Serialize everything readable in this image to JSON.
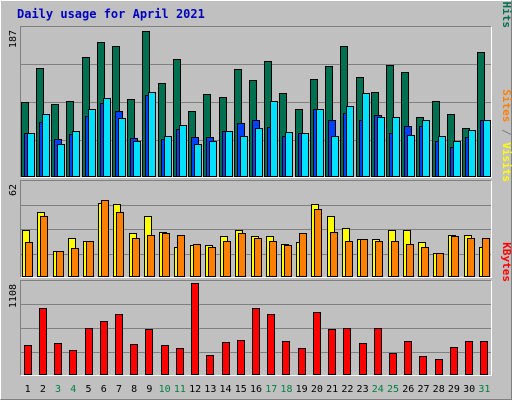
{
  "chart_data": {
    "type": "bar",
    "title": "Daily usage for April 2021",
    "colors": {
      "background": "#c0c0c0",
      "title": "#0000c0",
      "grid": "#808080",
      "hits": "#007050",
      "files": "#0040ff",
      "pages": "#00e0ff",
      "visits": "#ffff00",
      "sites": "#ff8000",
      "kbytes": "#ff0000",
      "weekday_label": "#000000",
      "weekend_label": "#008040"
    },
    "categories": [
      "1",
      "2",
      "3",
      "4",
      "5",
      "6",
      "7",
      "8",
      "9",
      "10",
      "11",
      "12",
      "13",
      "14",
      "15",
      "16",
      "17",
      "18",
      "19",
      "20",
      "21",
      "22",
      "23",
      "24",
      "25",
      "26",
      "27",
      "28",
      "29",
      "30",
      "31"
    ],
    "weekend_days": [
      "3",
      "4",
      "10",
      "11",
      "17",
      "18",
      "24",
      "25",
      "31"
    ],
    "panels": [
      {
        "scale_label": "187",
        "max": 187,
        "side_labels": [
          {
            "text": "Pages",
            "color": "#00e0ff"
          },
          {
            "text": " / ",
            "color": "#808080"
          },
          {
            "text": "Files",
            "color": "#0040ff"
          },
          {
            "text": " / ",
            "color": "#808080"
          },
          {
            "text": "Hits",
            "color": "#007050"
          }
        ],
        "series": [
          {
            "name": "Hits",
            "color": "#007050",
            "values": [
              95,
              138,
              92,
              96,
              151,
              170,
              165,
              98,
              184,
              119,
              149,
              83,
              105,
              101,
              136,
              122,
              147,
              106,
              86,
              124,
              140,
              166,
              126,
              108,
              142,
              133,
              76,
              96,
              80,
              62,
              158
            ]
          },
          {
            "name": "Files",
            "color": "#0040ff",
            "values": [
              56,
              70,
              48,
              54,
              77,
              94,
              84,
              49,
              103,
              48,
              61,
              50,
              51,
              58,
              68,
              72,
              63,
              52,
              56,
              86,
              72,
              81,
              72,
              78,
              56,
              64,
              64,
              46,
              38,
              50,
              72
            ]
          },
          {
            "name": "Pages",
            "color": "#00e0ff",
            "values": [
              56,
              80,
              42,
              58,
              86,
              100,
              75,
              45,
              108,
              52,
              66,
              42,
              46,
              58,
              52,
              62,
              96,
              57,
              56,
              86,
              52,
              90,
              106,
              76,
              76,
              53,
              72,
              52,
              45,
              59,
              72
            ]
          }
        ]
      },
      {
        "scale_label": "62",
        "max": 62,
        "side_labels": [
          {
            "text": "Sites",
            "color": "#ff8000"
          },
          {
            "text": " / ",
            "color": "#808080"
          },
          {
            "text": "Visits",
            "color": "#ffff00"
          }
        ],
        "series": [
          {
            "name": "Visits",
            "color": "#ffff00",
            "values": [
              31,
              43,
              17,
              26,
              24,
              49,
              48,
              29,
              40,
              30,
              20,
              21,
              21,
              27,
              31,
              27,
              27,
              22,
              23,
              48,
              40,
              32,
              25,
              25,
              31,
              31,
              23,
              16,
              28,
              28,
              20
            ]
          },
          {
            "name": "Sites",
            "color": "#ff8000",
            "values": [
              23,
              40,
              17,
              19,
              24,
              51,
              43,
              26,
              28,
              29,
              28,
              22,
              20,
              24,
              29,
              26,
              24,
              21,
              29,
              45,
              30,
              24,
              25,
              24,
              24,
              22,
              20,
              16,
              27,
              26,
              26
            ]
          }
        ]
      },
      {
        "scale_label": "1108",
        "max": 1108,
        "side_labels": [
          {
            "text": "KBytes",
            "color": "#ff0000"
          }
        ],
        "series": [
          {
            "name": "KBytes",
            "color": "#ff0000",
            "values": [
              360,
              810,
              380,
              300,
              570,
              650,
              740,
              370,
              550,
              360,
              330,
              1108,
              240,
              400,
              420,
              805,
              740,
              410,
              330,
              760,
              560,
              570,
              390,
              570,
              260,
              410,
              230,
              190,
              340,
              410,
              410
            ]
          }
        ]
      }
    ]
  }
}
